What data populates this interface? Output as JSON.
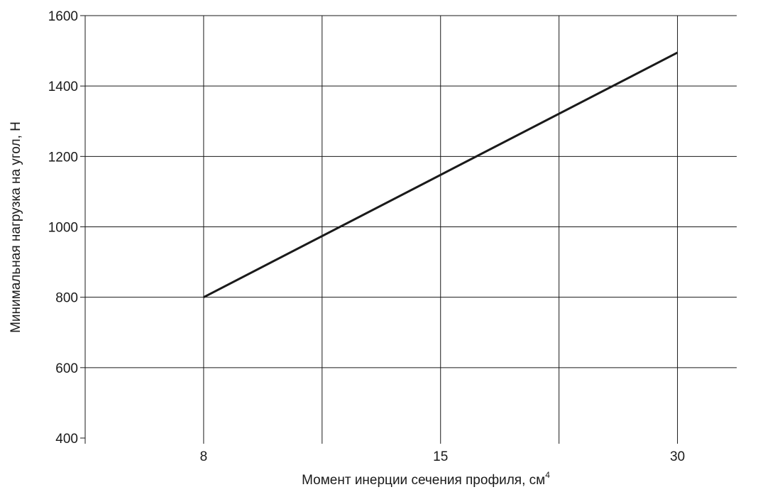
{
  "chart_data": {
    "type": "line",
    "xlabel": "Момент инерции сечения профиля, см",
    "xlabel_superscript": "4",
    "ylabel": "Минимальная нагрузка на угол, Н",
    "x_tick_positions": [
      0,
      1,
      2,
      3,
      4,
      5
    ],
    "x_tick_labels": [
      "",
      "8",
      "",
      "15",
      "",
      "30"
    ],
    "xlim": [
      0,
      5.5
    ],
    "ylim": [
      400,
      1600
    ],
    "y_ticks": [
      400,
      600,
      800,
      1000,
      1200,
      1400,
      1600
    ],
    "grid": true,
    "series": [
      {
        "x": [
          "8",
          "30"
        ],
        "x_index": [
          1,
          5
        ],
        "y": [
          800,
          1495
        ],
        "color": "#1a1a1a"
      }
    ]
  }
}
